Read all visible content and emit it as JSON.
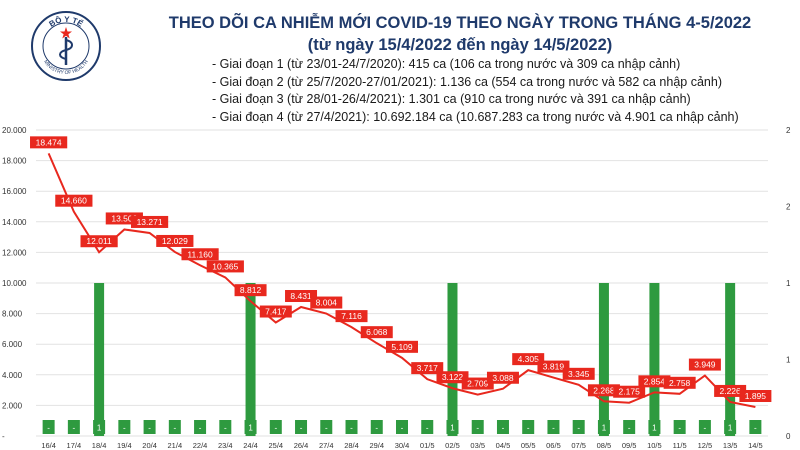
{
  "header": {
    "logo_text_top": "BỘ Y TẾ",
    "logo_text_bottom": "MINISTRY OF HEALTH",
    "title_line1": "THEO DÕI CA NHIỄM MỚI COVID-19 THEO NGÀY TRONG THÁNG 4-5/2022",
    "title_line2": "(từ ngày 15/4/2022 đến ngày 14/5/2022)"
  },
  "notes": [
    "- Giai đoạn 1 (từ 23/01-24/7/2020): 415 ca (106 ca trong nước và 309 ca nhập cảnh)",
    "- Giai đoạn 2 (từ 25/7/2020-27/01/2021): 1.136 ca (554 ca trong nước và 582 ca nhập cảnh)",
    "- Giai đoạn 3 (từ 28/01-26/4/2021): 1.301 ca (910 ca trong nước và 391 ca nhập cảnh)",
    "- Giai đoạn 4 (từ 27/4/2021): 10.692.184 ca (10.687.283 ca trong nước và 4.901 ca nhập cảnh)"
  ],
  "colors": {
    "line": "#e8281e",
    "label_bg": "#e8281e",
    "bar": "#2e9a3f",
    "title": "#1f3a6b"
  },
  "chart_data": {
    "type": "bar+line",
    "categories": [
      "16/4",
      "17/4",
      "18/4",
      "19/4",
      "20/4",
      "21/4",
      "22/4",
      "23/4",
      "24/4",
      "25/4",
      "26/4",
      "27/4",
      "28/4",
      "29/4",
      "30/4",
      "01/5",
      "02/5",
      "03/5",
      "04/5",
      "05/5",
      "06/5",
      "07/5",
      "08/5",
      "09/5",
      "10/5",
      "11/5",
      "12/5",
      "13/5",
      "14/5"
    ],
    "line_values": [
      18474,
      14660,
      12011,
      13500,
      13271,
      12029,
      11160,
      10365,
      8812,
      7417,
      8431,
      8004,
      7116,
      6068,
      5109,
      3717,
      3122,
      2709,
      3088,
      4305,
      3819,
      3345,
      2268,
      2175,
      2854,
      2758,
      3949,
      2226,
      1895
    ],
    "line_labels": [
      "18.474",
      "14.660",
      "12.011",
      "13.500",
      "13.271",
      "12.029",
      "11.160",
      "10.365",
      "8.812",
      "7.417",
      "8.431",
      "8.004",
      "7.116",
      "6.068",
      "5.109",
      "3.717",
      "3.122",
      "2.709",
      "3.088",
      "4.305",
      "3.819",
      "3.345",
      "2.268",
      "2.175",
      "2.854",
      "2.758",
      "3.949",
      "2.226",
      "1.895"
    ],
    "bar_values": [
      0,
      0,
      1,
      0,
      0,
      0,
      0,
      0,
      1,
      0,
      0,
      0,
      0,
      0,
      0,
      0,
      1,
      0,
      0,
      0,
      0,
      0,
      1,
      0,
      1,
      0,
      0,
      1,
      0
    ],
    "bar_labels": [
      "-",
      "-",
      "1",
      "-",
      "-",
      "-",
      "-",
      "-",
      "1",
      "-",
      "-",
      "-",
      "-",
      "-",
      "-",
      "-",
      "1",
      "-",
      "-",
      "-",
      "-",
      "-",
      "1",
      "-",
      "1",
      "-",
      "-",
      "1",
      "-"
    ],
    "y_left": {
      "ylim": [
        0,
        20000
      ],
      "ticks": [
        "-",
        "2.000",
        "4.000",
        "6.000",
        "8.000",
        "10.000",
        "12.000",
        "14.000",
        "16.000",
        "18.000",
        "20.000"
      ]
    },
    "y_right": {
      "ylim": [
        0,
        2
      ],
      "ticks": [
        "0",
        "1",
        "1",
        "2",
        "2"
      ]
    }
  }
}
